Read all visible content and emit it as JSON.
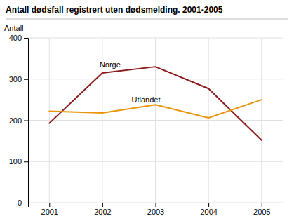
{
  "chart_data": {
    "type": "line",
    "title": "Antall dødsfall registrert uten dødsmelding. 2001-2005",
    "ylabel": "Antall",
    "x": [
      2001,
      2002,
      2003,
      2004,
      2005
    ],
    "series": [
      {
        "name": "Norge",
        "color": "#8B1A1A",
        "values": [
          193,
          315,
          330,
          277,
          152
        ]
      },
      {
        "name": "Utlandet",
        "color": "#E8960C",
        "values": [
          222,
          218,
          238,
          206,
          250
        ]
      }
    ],
    "xlim": [
      2000.6,
      2005.4
    ],
    "xticks": [
      2001,
      2002,
      2003,
      2004,
      2005
    ],
    "ylim": [
      0,
      400
    ],
    "yticks": [
      0,
      100,
      200,
      300,
      400
    ],
    "grid": true
  }
}
